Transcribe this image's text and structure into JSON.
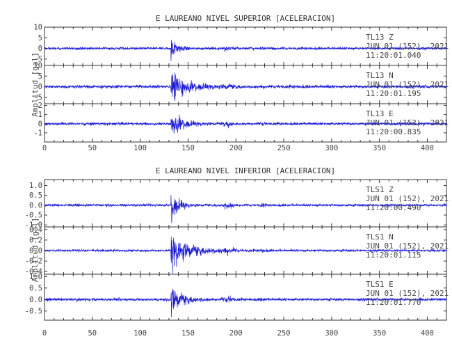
{
  "chart_data": [
    {
      "type": "line",
      "title": "E LAUREANO NIVEL SUPERIOR [ACELERACION]",
      "ylabel": "Amplitud [gal]",
      "xlim": [
        0,
        420
      ],
      "x_ticks": [
        "0",
        "50",
        "100",
        "150",
        "200",
        "250",
        "300",
        "350",
        "400"
      ],
      "series_color": "#1a1adb",
      "event_onset_x": 132,
      "series": [
        {
          "name": "TL13 Z",
          "station": "TL13",
          "component": "Z",
          "date": "JUN 01 (152), 2021",
          "time": "11:20:01.040",
          "ylim": [
            -8,
            10
          ],
          "y_ticks": [
            "10",
            "5",
            "0",
            "-5"
          ],
          "y_tick_values": [
            10,
            5,
            0,
            -5
          ],
          "noise_amplitude": 0.4,
          "peak_amplitude": 7,
          "decay_seconds": 6
        },
        {
          "name": "TL13 N",
          "station": "TL13",
          "component": "N",
          "date": "JUN 01 (152), 2021",
          "time": "11:20:01.195",
          "ylim": [
            -8,
            10
          ],
          "y_ticks": [
            "10",
            "5",
            "0",
            "-5"
          ],
          "y_tick_values": [
            10,
            5,
            0,
            -5
          ],
          "noise_amplitude": 0.5,
          "peak_amplitude": 7,
          "decay_seconds": 18
        },
        {
          "name": "TL13 E",
          "station": "TL13",
          "component": "E",
          "date": "JUN 01 (152), 2021",
          "time": "11:20:00.835",
          "ylim": [
            -2,
            2.2
          ],
          "y_ticks": [
            "2",
            "1",
            "0",
            "-1"
          ],
          "y_tick_values": [
            2,
            1,
            0,
            -1
          ],
          "noise_amplitude": 0.1,
          "peak_amplitude": 1.8,
          "decay_seconds": 11
        }
      ]
    },
    {
      "type": "line",
      "title": "E LAUREANO NIVEL INFERIOR [ACELERACION]",
      "ylabel": "Amplitud [gal]",
      "xlim": [
        0,
        420
      ],
      "x_ticks": [
        "0",
        "50",
        "100",
        "150",
        "200",
        "250",
        "300",
        "350",
        "400"
      ],
      "series_color": "#1a1adb",
      "event_onset_x": 132,
      "series": [
        {
          "name": "TLS1 Z",
          "station": "TLS1",
          "component": "Z",
          "date": "JUN 01 (152), 2021",
          "time": "11:20:00.490",
          "ylim": [
            -1.1,
            1.3
          ],
          "y_ticks": [
            "1.0",
            "0.5",
            "0.0",
            "-0.5",
            "-1.0"
          ],
          "y_tick_values": [
            1.0,
            0.5,
            0.0,
            -0.5,
            -1.0
          ],
          "noise_amplitude": 0.04,
          "peak_amplitude": 1.1,
          "decay_seconds": 7
        },
        {
          "name": "TLS1 N",
          "station": "TLS1",
          "component": "N",
          "date": "JUN 01 (152), 2021",
          "time": "11:20:01.115",
          "ylim": [
            -0.45,
            0.45
          ],
          "y_ticks": [
            "0.4",
            "0.2",
            "0.0",
            "-0.2",
            "-0.4"
          ],
          "y_tick_values": [
            0.4,
            0.2,
            0.0,
            -0.2,
            -0.4
          ],
          "noise_amplitude": 0.015,
          "peak_amplitude": 0.42,
          "decay_seconds": 18
        },
        {
          "name": "TLS1 E",
          "station": "TLS1",
          "component": "E",
          "date": "JUN 01 (152), 2021",
          "time": "11:20:01.770",
          "ylim": [
            -0.9,
            1.1
          ],
          "y_ticks": [
            "1.0",
            "0.5",
            "0.0",
            "-0.5"
          ],
          "y_tick_values": [
            1.0,
            0.5,
            0.0,
            -0.5
          ],
          "noise_amplitude": 0.04,
          "peak_amplitude": 0.8,
          "decay_seconds": 11
        }
      ]
    }
  ]
}
